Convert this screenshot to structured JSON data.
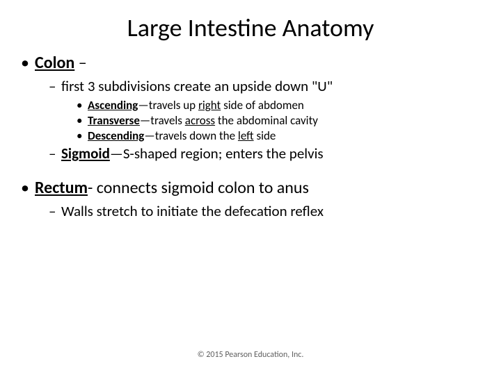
{
  "colors": {
    "background": "#ffffff",
    "text": "#000000",
    "footer": "#606060"
  },
  "typography": {
    "title_fontsize": 36,
    "l1_fontsize": 24,
    "l2_fontsize": 21,
    "l3_fontsize": 17,
    "footer_fontsize": 12,
    "font_family": "Calibri"
  },
  "title": "Large Intestine Anatomy",
  "l1_colon_label": "Colon",
  "l1_colon_tail": " –",
  "l2_subdivisions": "first 3 subdivisions create an upside down \"U\"",
  "l3_ascending_bold": "Ascending",
  "l3_ascending_mid": "—travels up ",
  "l3_ascending_u": "right",
  "l3_ascending_end": " side of abdomen",
  "l3_transverse_bold": "Transverse",
  "l3_transverse_mid": "—travels ",
  "l3_transverse_u": "across",
  "l3_transverse_end": " the abdominal cavity",
  "l3_descending_bold": "Descending",
  "l3_descending_mid": "—travels down the ",
  "l3_descending_u": "left",
  "l3_descending_end": " side",
  "l2_sigmoid_bold": "Sigmoid",
  "l2_sigmoid_tail": "—S-shaped region; enters the pelvis",
  "l1_rectum_label": "Rectum",
  "l1_rectum_tail": "- connects sigmoid colon to anus",
  "l2_walls": "Walls stretch to initiate the defecation reflex",
  "footer": "© 2015 Pearson Education, Inc."
}
